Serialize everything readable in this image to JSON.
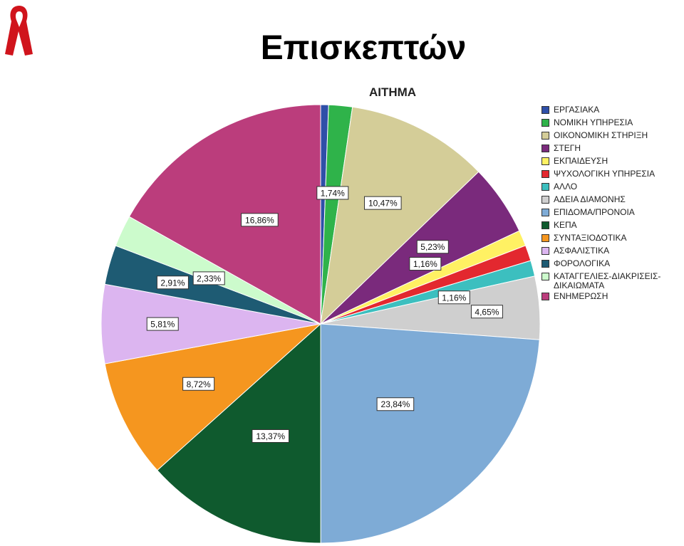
{
  "page_title": "Επισκεπτών",
  "logo": "red-ribbon-icon",
  "chart_data": {
    "type": "pie",
    "title": "ΑΙΤΗΜΑ",
    "legend_position": "right",
    "categories": [
      "ΕΡΓΑΣΙΑΚΑ",
      "ΝΟΜΙΚΗ ΥΠΗΡΕΣΙΑ",
      "ΟΙΚΟΝΟΜΙΚΗ ΣΤΗΡΙΞΗ",
      "ΣΤΕΓΗ",
      "ΕΚΠΑΙΔΕΥΣΗ",
      "ΨΥΧΟΛΟΓΙΚΗ ΥΠΗΡΕΣΙΑ",
      "ΑΛΛΟ",
      "ΑΔΕΙΑ ΔΙΑΜΟΝΗΣ",
      "ΕΠΙΔΟΜΑ/ΠΡΟΝΟΙΑ",
      "ΚΕΠΑ",
      "ΣΥΝΤΑΞΙΟΔΟΤΙΚΑ",
      "ΑΣΦΑΛΙΣΤΙΚΑ",
      "ΦΟΡΟΛΟΓΙΚΑ",
      "ΚΑΤΑΓΓΕΛΙΕΣ-ΔΙΑΚΡΙΣΕΙΣ-ΔΙΚΑΙΩΜΑΤΑ",
      "ΕΝΗΜΕΡΩΣΗ"
    ],
    "values": [
      0.58,
      1.74,
      10.47,
      5.23,
      1.16,
      1.16,
      1.16,
      4.65,
      23.84,
      13.37,
      8.72,
      5.81,
      2.91,
      2.33,
      16.86
    ],
    "data_labels": [
      "",
      "1,74%",
      "10,47%",
      "5,23%",
      "1,16%",
      "",
      "1,16%",
      "4,65%",
      "23,84%",
      "13,37%",
      "8,72%",
      "5,81%",
      "2,91%",
      "2,33%",
      "16,86%"
    ],
    "colors": [
      "#2f4fa8",
      "#2fb34a",
      "#d4cd98",
      "#7a2a7c",
      "#fff163",
      "#e3282f",
      "#3cbfbf",
      "#cfcfcf",
      "#7eabd6",
      "#0f5a2e",
      "#f5961f",
      "#dcb5f0",
      "#1e5b73",
      "#ccfbcc",
      "#bb3d7c"
    ]
  }
}
